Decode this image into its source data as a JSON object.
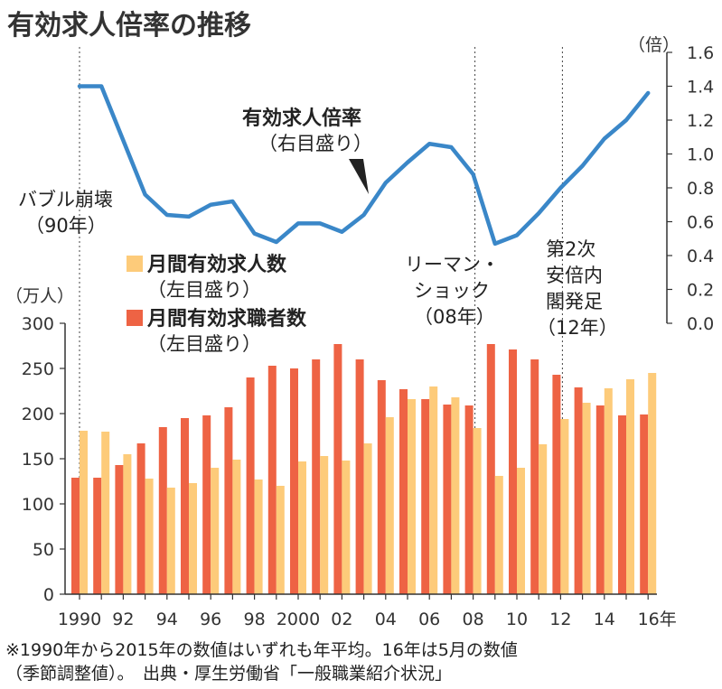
{
  "title": "有効求人倍率の推移",
  "colors": {
    "line": "#3a87c8",
    "openings_bar": "#fdcb7a",
    "applicants_bar": "#ee6344",
    "axis": "#333333",
    "grid_dotted": "#444444"
  },
  "left_axis": {
    "unit": "（万人）",
    "ticks": [
      0,
      50,
      100,
      150,
      200,
      250,
      300
    ],
    "range": [
      0,
      300
    ]
  },
  "right_axis": {
    "unit": "（倍）",
    "ticks": [
      "0.0",
      "0.2",
      "0.4",
      "0.6",
      "0.8",
      "1.0",
      "1.2",
      "1.4",
      "1.6"
    ],
    "range": [
      0,
      1.6
    ]
  },
  "x_axis": {
    "tick_labels": [
      "1990",
      "92",
      "94",
      "96",
      "98",
      "2000",
      "02",
      "04",
      "06",
      "08",
      "10",
      "12",
      "14",
      "16年"
    ]
  },
  "legend": {
    "openings": {
      "name": "月間有効求人数",
      "note": "（左目盛り）"
    },
    "applicants": {
      "name": "月間有効求職者数",
      "note": "（左目盛り）"
    }
  },
  "line_label": {
    "name": "有効求人倍率",
    "note": "（右目盛り）"
  },
  "annotations": {
    "bubble": [
      "バブル崩壊",
      "（90年）"
    ],
    "lehman": [
      "リーマン・",
      "ショック",
      "（08年）"
    ],
    "abe": [
      "第2次",
      "安倍内",
      "閣発足",
      "（12年）"
    ]
  },
  "footnote": [
    "※1990年から2015年の数値はいずれも年平均。16年は5月の数値",
    "（季節調整値）。　出典・厚生労働省「一般職業紹介状況」"
  ],
  "chart_data": {
    "type": "bar+line",
    "title": "有効求人倍率の推移",
    "x": [
      1990,
      1991,
      1992,
      1993,
      1994,
      1995,
      1996,
      1997,
      1998,
      1999,
      2000,
      2001,
      2002,
      2003,
      2004,
      2005,
      2006,
      2007,
      2008,
      2009,
      2010,
      2011,
      2012,
      2013,
      2014,
      2015,
      2016
    ],
    "series": [
      {
        "name": "月間有効求職者数",
        "type": "bar",
        "axis": "left",
        "values": [
          129,
          129,
          143,
          167,
          185,
          195,
          198,
          207,
          240,
          253,
          250,
          260,
          277,
          260,
          237,
          227,
          216,
          210,
          209,
          277,
          271,
          260,
          243,
          229,
          209,
          198,
          199
        ]
      },
      {
        "name": "月間有効求人数",
        "type": "bar",
        "axis": "left",
        "values": [
          181,
          180,
          155,
          128,
          118,
          123,
          140,
          149,
          127,
          120,
          147,
          153,
          148,
          167,
          196,
          216,
          230,
          218,
          184,
          131,
          140,
          166,
          194,
          212,
          228,
          238,
          245
        ]
      },
      {
        "name": "有効求人倍率",
        "type": "line",
        "axis": "right",
        "values": [
          1.4,
          1.4,
          1.08,
          0.76,
          0.64,
          0.63,
          0.7,
          0.72,
          0.53,
          0.48,
          0.59,
          0.59,
          0.54,
          0.64,
          0.83,
          0.95,
          1.06,
          1.04,
          0.88,
          0.47,
          0.52,
          0.65,
          0.8,
          0.93,
          1.09,
          1.2,
          1.36
        ]
      }
    ],
    "events": [
      1990,
      2008,
      2012
    ],
    "ylabel_left": "（万人）",
    "ylabel_right": "（倍）",
    "ylim_left": [
      0,
      300
    ],
    "ylim_right": [
      0,
      1.6
    ]
  }
}
